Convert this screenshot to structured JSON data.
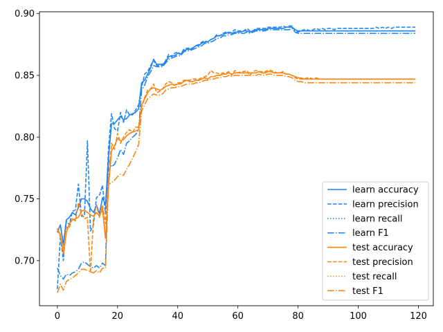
{
  "chart_data": {
    "type": "line",
    "title": "",
    "xlabel": "",
    "ylabel": "",
    "xlim": [
      -5.95,
      124.95
    ],
    "ylim": [
      0.6635,
      0.9015
    ],
    "grid": false,
    "legend_position": "lower-right",
    "x_ticks": [
      0,
      20,
      40,
      60,
      80,
      100,
      120
    ],
    "y_ticks": [
      0.7,
      0.75,
      0.8,
      0.85,
      0.9
    ],
    "x_tick_labels": [
      "0",
      "20",
      "40",
      "60",
      "80",
      "100",
      "120"
    ],
    "y_tick_labels": [
      "0.70",
      "0.75",
      "0.80",
      "0.85",
      "0.90"
    ],
    "colors": {
      "learn": "#1f85f0",
      "test": "#fb8512"
    },
    "x_start": 0,
    "series": [
      {
        "name": "learn accuracy",
        "group": "learn",
        "dash": "solid",
        "values": [
          0.723,
          0.729,
          0.713,
          0.733,
          0.735,
          0.739,
          0.737,
          0.743,
          0.75,
          0.75,
          0.748,
          0.742,
          0.739,
          0.745,
          0.738,
          0.751,
          0.745,
          0.783,
          0.811,
          0.811,
          0.814,
          0.817,
          0.814,
          0.815,
          0.818,
          0.819,
          0.82,
          0.823,
          0.844,
          0.846,
          0.851,
          0.856,
          0.863,
          0.859,
          0.859,
          0.859,
          0.861,
          0.865,
          0.866,
          0.866,
          0.868,
          0.867,
          0.87,
          0.871,
          0.871,
          0.872,
          0.874,
          0.874,
          0.876,
          0.877,
          0.877,
          0.879,
          0.88,
          0.882,
          0.882,
          0.883,
          0.884,
          0.885,
          0.884,
          0.885,
          0.885,
          0.885,
          0.886,
          0.886,
          0.885,
          0.886,
          0.887,
          0.887,
          0.887,
          0.887,
          0.888,
          0.888,
          0.888,
          0.888,
          0.888,
          0.888,
          0.889,
          0.889,
          0.889,
          0.887,
          0.886,
          0.886,
          0.886,
          0.886,
          0.886,
          0.886,
          0.886,
          0.886,
          0.886,
          0.886,
          0.886,
          0.886,
          0.886,
          0.886,
          0.886,
          0.886,
          0.886,
          0.886,
          0.886,
          0.886,
          0.886,
          0.886,
          0.886,
          0.886,
          0.886,
          0.886,
          0.886,
          0.886,
          0.886,
          0.886,
          0.886,
          0.886,
          0.886,
          0.886,
          0.886,
          0.886,
          0.886,
          0.886,
          0.886,
          0.886
        ]
      },
      {
        "name": "learn precision",
        "group": "learn",
        "dash": "dashed",
        "values": [
          0.677,
          0.72,
          0.7,
          0.732,
          0.729,
          0.74,
          0.741,
          0.762,
          0.736,
          0.736,
          0.797,
          0.724,
          0.729,
          0.751,
          0.753,
          0.761,
          0.738,
          0.791,
          0.819,
          0.807,
          0.805,
          0.82,
          0.812,
          0.822,
          0.818,
          0.818,
          0.822,
          0.826,
          0.84,
          0.851,
          0.853,
          0.858,
          0.862,
          0.858,
          0.858,
          0.858,
          0.862,
          0.867,
          0.865,
          0.868,
          0.869,
          0.867,
          0.871,
          0.872,
          0.872,
          0.872,
          0.874,
          0.875,
          0.877,
          0.878,
          0.877,
          0.879,
          0.88,
          0.883,
          0.882,
          0.884,
          0.885,
          0.884,
          0.885,
          0.887,
          0.886,
          0.886,
          0.886,
          0.888,
          0.886,
          0.886,
          0.888,
          0.888,
          0.888,
          0.888,
          0.889,
          0.889,
          0.889,
          0.889,
          0.889,
          0.89,
          0.889,
          0.89,
          0.89,
          0.886,
          0.885,
          0.886,
          0.887,
          0.887,
          0.886,
          0.887,
          0.888,
          0.887,
          0.888,
          0.887,
          0.888,
          0.888,
          0.887,
          0.888,
          0.888,
          0.888,
          0.888,
          0.888,
          0.888,
          0.888,
          0.888,
          0.888,
          0.888,
          0.888,
          0.888,
          0.888,
          0.889,
          0.888,
          0.889,
          0.888,
          0.889,
          0.888,
          0.889,
          0.889,
          0.889,
          0.889,
          0.889,
          0.889,
          0.889,
          0.889
        ]
      },
      {
        "name": "learn recall",
        "group": "learn",
        "dash": "dotted",
        "values": [
          0.723,
          0.729,
          0.713,
          0.733,
          0.735,
          0.739,
          0.737,
          0.743,
          0.75,
          0.75,
          0.748,
          0.742,
          0.739,
          0.745,
          0.738,
          0.751,
          0.745,
          0.783,
          0.811,
          0.811,
          0.814,
          0.817,
          0.814,
          0.815,
          0.818,
          0.819,
          0.82,
          0.823,
          0.844,
          0.846,
          0.851,
          0.856,
          0.863,
          0.859,
          0.859,
          0.859,
          0.861,
          0.865,
          0.866,
          0.866,
          0.868,
          0.867,
          0.87,
          0.871,
          0.871,
          0.872,
          0.874,
          0.874,
          0.876,
          0.877,
          0.877,
          0.879,
          0.88,
          0.882,
          0.882,
          0.883,
          0.884,
          0.885,
          0.884,
          0.885,
          0.885,
          0.885,
          0.886,
          0.886,
          0.885,
          0.886,
          0.887,
          0.887,
          0.887,
          0.887,
          0.888,
          0.888,
          0.888,
          0.888,
          0.888,
          0.888,
          0.889,
          0.889,
          0.889,
          0.887,
          0.886,
          0.886,
          0.886,
          0.886,
          0.886,
          0.886,
          0.886,
          0.886,
          0.886,
          0.886,
          0.886,
          0.886,
          0.886,
          0.886,
          0.886,
          0.886,
          0.886,
          0.886,
          0.886,
          0.886,
          0.886,
          0.886,
          0.886,
          0.886,
          0.886,
          0.886,
          0.886,
          0.886,
          0.886,
          0.886,
          0.886,
          0.886,
          0.886,
          0.886,
          0.886,
          0.886,
          0.886,
          0.886,
          0.886,
          0.886
        ]
      },
      {
        "name": "learn F1",
        "group": "learn",
        "dash": "dashdot",
        "values": [
          0.694,
          0.688,
          0.685,
          0.689,
          0.688,
          0.69,
          0.691,
          0.693,
          0.698,
          0.699,
          0.697,
          0.695,
          0.694,
          0.696,
          0.694,
          0.698,
          0.696,
          0.782,
          0.776,
          0.778,
          0.783,
          0.79,
          0.786,
          0.795,
          0.797,
          0.8,
          0.802,
          0.806,
          0.838,
          0.842,
          0.849,
          0.853,
          0.858,
          0.857,
          0.857,
          0.857,
          0.86,
          0.863,
          0.864,
          0.865,
          0.866,
          0.866,
          0.869,
          0.87,
          0.87,
          0.871,
          0.872,
          0.873,
          0.874,
          0.876,
          0.876,
          0.877,
          0.878,
          0.88,
          0.88,
          0.882,
          0.882,
          0.883,
          0.883,
          0.884,
          0.884,
          0.884,
          0.884,
          0.885,
          0.884,
          0.885,
          0.886,
          0.886,
          0.886,
          0.886,
          0.887,
          0.887,
          0.887,
          0.887,
          0.887,
          0.887,
          0.887,
          0.887,
          0.888,
          0.885,
          0.884,
          0.884,
          0.884,
          0.884,
          0.884,
          0.884,
          0.884,
          0.884,
          0.884,
          0.884,
          0.884,
          0.884,
          0.884,
          0.884,
          0.884,
          0.884,
          0.884,
          0.884,
          0.884,
          0.884,
          0.884,
          0.884,
          0.884,
          0.884,
          0.884,
          0.884,
          0.884,
          0.884,
          0.884,
          0.884,
          0.884,
          0.884,
          0.884,
          0.884,
          0.884,
          0.884,
          0.884,
          0.884,
          0.884,
          0.884
        ]
      },
      {
        "name": "test accuracy",
        "group": "test",
        "dash": "solid",
        "values": [
          0.726,
          0.721,
          0.705,
          0.723,
          0.73,
          0.733,
          0.734,
          0.735,
          0.74,
          0.741,
          0.739,
          0.737,
          0.736,
          0.739,
          0.736,
          0.742,
          0.718,
          0.76,
          0.789,
          0.793,
          0.799,
          0.797,
          0.798,
          0.801,
          0.803,
          0.804,
          0.805,
          0.806,
          0.826,
          0.831,
          0.836,
          0.839,
          0.84,
          0.839,
          0.838,
          0.839,
          0.841,
          0.842,
          0.843,
          0.842,
          0.843,
          0.843,
          0.845,
          0.846,
          0.845,
          0.845,
          0.846,
          0.846,
          0.847,
          0.848,
          0.847,
          0.849,
          0.849,
          0.85,
          0.85,
          0.851,
          0.851,
          0.852,
          0.851,
          0.852,
          0.852,
          0.852,
          0.852,
          0.852,
          0.852,
          0.852,
          0.852,
          0.853,
          0.852,
          0.852,
          0.853,
          0.853,
          0.852,
          0.852,
          0.852,
          0.852,
          0.851,
          0.851,
          0.85,
          0.849,
          0.848,
          0.848,
          0.847,
          0.847,
          0.847,
          0.847,
          0.847,
          0.847,
          0.847,
          0.847,
          0.847,
          0.847,
          0.847,
          0.847,
          0.847,
          0.847,
          0.847,
          0.847,
          0.847,
          0.847,
          0.847,
          0.847,
          0.847,
          0.847,
          0.847,
          0.847,
          0.847,
          0.847,
          0.847,
          0.847,
          0.847,
          0.847,
          0.847,
          0.847,
          0.847,
          0.847,
          0.847,
          0.847,
          0.847,
          0.847
        ]
      },
      {
        "name": "test precision",
        "group": "test",
        "dash": "dashed",
        "values": [
          0.725,
          0.719,
          0.71,
          0.727,
          0.727,
          0.734,
          0.732,
          0.747,
          0.738,
          0.734,
          0.735,
          0.69,
          0.734,
          0.745,
          0.735,
          0.745,
          0.73,
          0.766,
          0.795,
          0.79,
          0.803,
          0.795,
          0.8,
          0.804,
          0.806,
          0.804,
          0.808,
          0.808,
          0.824,
          0.832,
          0.838,
          0.839,
          0.843,
          0.836,
          0.837,
          0.839,
          0.843,
          0.845,
          0.844,
          0.842,
          0.844,
          0.844,
          0.846,
          0.846,
          0.846,
          0.847,
          0.847,
          0.847,
          0.848,
          0.849,
          0.85,
          0.854,
          0.852,
          0.852,
          0.851,
          0.852,
          0.852,
          0.853,
          0.85,
          0.854,
          0.852,
          0.853,
          0.853,
          0.854,
          0.85,
          0.853,
          0.854,
          0.853,
          0.853,
          0.853,
          0.854,
          0.854,
          0.853,
          0.852,
          0.852,
          0.853,
          0.851,
          0.851,
          0.85,
          0.848,
          0.847,
          0.847,
          0.847,
          0.848,
          0.848,
          0.847,
          0.848,
          0.847,
          0.847,
          0.847,
          0.847,
          0.847,
          0.847,
          0.847,
          0.847,
          0.847,
          0.847,
          0.847,
          0.847,
          0.847,
          0.847,
          0.847,
          0.847,
          0.847,
          0.847,
          0.847,
          0.847,
          0.847,
          0.847,
          0.847,
          0.847,
          0.847,
          0.847,
          0.847,
          0.847,
          0.847,
          0.847,
          0.847,
          0.847,
          0.847
        ]
      },
      {
        "name": "test recall",
        "group": "test",
        "dash": "dotted",
        "values": [
          0.726,
          0.721,
          0.705,
          0.723,
          0.73,
          0.733,
          0.734,
          0.735,
          0.74,
          0.741,
          0.739,
          0.737,
          0.736,
          0.739,
          0.736,
          0.742,
          0.718,
          0.76,
          0.789,
          0.793,
          0.799,
          0.797,
          0.798,
          0.801,
          0.803,
          0.804,
          0.805,
          0.806,
          0.826,
          0.831,
          0.836,
          0.839,
          0.84,
          0.839,
          0.838,
          0.839,
          0.841,
          0.842,
          0.843,
          0.842,
          0.843,
          0.843,
          0.845,
          0.846,
          0.845,
          0.845,
          0.846,
          0.846,
          0.847,
          0.848,
          0.847,
          0.849,
          0.849,
          0.85,
          0.85,
          0.851,
          0.851,
          0.852,
          0.851,
          0.852,
          0.852,
          0.852,
          0.852,
          0.852,
          0.852,
          0.852,
          0.852,
          0.853,
          0.852,
          0.852,
          0.853,
          0.853,
          0.852,
          0.852,
          0.852,
          0.852,
          0.851,
          0.851,
          0.85,
          0.849,
          0.848,
          0.848,
          0.847,
          0.847,
          0.847,
          0.847,
          0.847,
          0.847,
          0.847,
          0.847,
          0.847,
          0.847,
          0.847,
          0.847,
          0.847,
          0.847,
          0.847,
          0.847,
          0.847,
          0.847,
          0.847,
          0.847,
          0.847,
          0.847,
          0.847,
          0.847,
          0.847,
          0.847,
          0.847,
          0.847,
          0.847,
          0.847,
          0.847,
          0.847,
          0.847,
          0.847,
          0.847,
          0.847,
          0.847,
          0.847
        ]
      },
      {
        "name": "test F1",
        "group": "test",
        "dash": "dashdot",
        "values": [
          0.674,
          0.681,
          0.676,
          0.683,
          0.685,
          0.686,
          0.688,
          0.69,
          0.693,
          0.693,
          0.692,
          0.691,
          0.69,
          0.692,
          0.69,
          0.694,
          0.694,
          0.762,
          0.763,
          0.765,
          0.768,
          0.77,
          0.769,
          0.774,
          0.778,
          0.783,
          0.788,
          0.794,
          0.821,
          0.826,
          0.831,
          0.833,
          0.835,
          0.834,
          0.834,
          0.835,
          0.838,
          0.839,
          0.84,
          0.84,
          0.841,
          0.841,
          0.842,
          0.843,
          0.843,
          0.843,
          0.844,
          0.844,
          0.845,
          0.846,
          0.846,
          0.847,
          0.847,
          0.848,
          0.848,
          0.849,
          0.849,
          0.85,
          0.849,
          0.85,
          0.85,
          0.85,
          0.85,
          0.85,
          0.85,
          0.85,
          0.85,
          0.851,
          0.85,
          0.85,
          0.851,
          0.851,
          0.85,
          0.85,
          0.85,
          0.85,
          0.849,
          0.849,
          0.848,
          0.846,
          0.845,
          0.845,
          0.844,
          0.844,
          0.844,
          0.844,
          0.844,
          0.844,
          0.844,
          0.844,
          0.844,
          0.844,
          0.844,
          0.844,
          0.844,
          0.844,
          0.844,
          0.844,
          0.844,
          0.844,
          0.844,
          0.844,
          0.844,
          0.844,
          0.844,
          0.844,
          0.844,
          0.844,
          0.844,
          0.844,
          0.844,
          0.844,
          0.844,
          0.844,
          0.844,
          0.844,
          0.844,
          0.844,
          0.844,
          0.844
        ]
      }
    ]
  }
}
